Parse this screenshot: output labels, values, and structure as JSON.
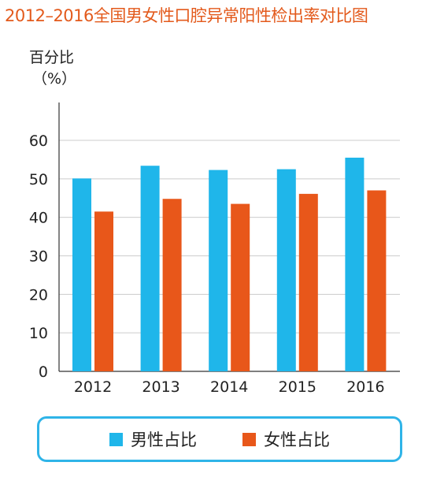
{
  "title": "2012–2016全国男女性口腔异常阳性检出率对比图",
  "ylabel_line1": "百分比",
  "ylabel_line2": "（%）",
  "colors": {
    "male": "#1fb6ea",
    "female": "#e8571a",
    "grid": "#cccccc",
    "axis": "#333333",
    "title": "#e35a1c"
  },
  "chart_data": {
    "type": "bar",
    "categories": [
      "2012",
      "2013",
      "2014",
      "2015",
      "2016"
    ],
    "series": [
      {
        "name": "男性占比",
        "values": [
          50.1,
          53.4,
          52.3,
          52.5,
          55.5
        ]
      },
      {
        "name": "女性占比",
        "values": [
          41.5,
          44.8,
          43.5,
          46.1,
          47.0
        ]
      }
    ],
    "ylim": [
      0,
      60
    ],
    "yticks": [
      "0",
      "10",
      "20",
      "30",
      "40",
      "50",
      "60"
    ],
    "grid": true,
    "legend": "bottom"
  }
}
